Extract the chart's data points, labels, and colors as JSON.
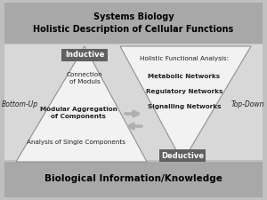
{
  "title_top": "Systems Biology\nHolistic Description of Cellular Functions",
  "title_bottom": "Biological Information/Knowledge",
  "label_bottom_up": "Bottom-Up",
  "label_top_down": "Top-Down",
  "label_inductive": "Inductive",
  "label_deductive": "Deductive",
  "left_triangle_texts": [
    "Connection\nof Moduls",
    "Modular Aggregation\nof Components",
    "Analysis of Single Components"
  ],
  "right_triangle_texts": [
    "Holistic Functional Analysis:",
    "Metabolic Networks",
    "Regulatory Networks",
    "Signalling Networks"
  ],
  "outer_bg": "#c0c0c0",
  "inner_bg": "#d8d8d8",
  "top_bar_color": "#a8a8a8",
  "bottom_bar_color": "#a8a8a8",
  "triangle_fill": "#f2f2f2",
  "triangle_edge": "#909090",
  "dark_box_color": "#606060",
  "dark_box_text": "#ffffff",
  "arrow_color": "#b0b0b0",
  "text_color": "#222222"
}
